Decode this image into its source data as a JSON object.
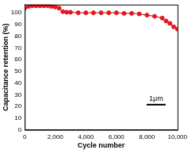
{
  "chart_data": {
    "type": "line",
    "x_label": "Cycle number",
    "y_label": "Capacitance retention (%)",
    "annotations": [
      "1μm"
    ],
    "series": [
      {
        "name": "Capacitance retention",
        "color": "#e8141e",
        "marker": "circle",
        "line_style": "solid",
        "x": [
          0,
          250,
          500,
          750,
          1000,
          1250,
          1500,
          1750,
          2000,
          2250,
          2500,
          2750,
          3000,
          3500,
          4000,
          4500,
          5000,
          5500,
          6000,
          6500,
          7000,
          7500,
          8000,
          8500,
          9000,
          9250,
          9500,
          9750,
          10000
        ],
        "values": [
          104,
          105.5,
          106,
          106,
          106,
          106,
          106,
          105.5,
          105,
          104,
          101,
          100.5,
          100.5,
          100,
          100,
          100,
          100,
          100,
          100,
          99.5,
          99.5,
          99,
          98,
          97,
          95.5,
          93,
          91,
          88,
          86
        ]
      }
    ],
    "xlim": [
      0,
      10000
    ],
    "xticks": [
      0,
      2000,
      4000,
      6000,
      8000,
      10000
    ],
    "ylim": [
      0,
      107
    ],
    "yticks": [
      0,
      10,
      20,
      30,
      40,
      50,
      60,
      70,
      80,
      90,
      100
    ],
    "grid": false
  }
}
